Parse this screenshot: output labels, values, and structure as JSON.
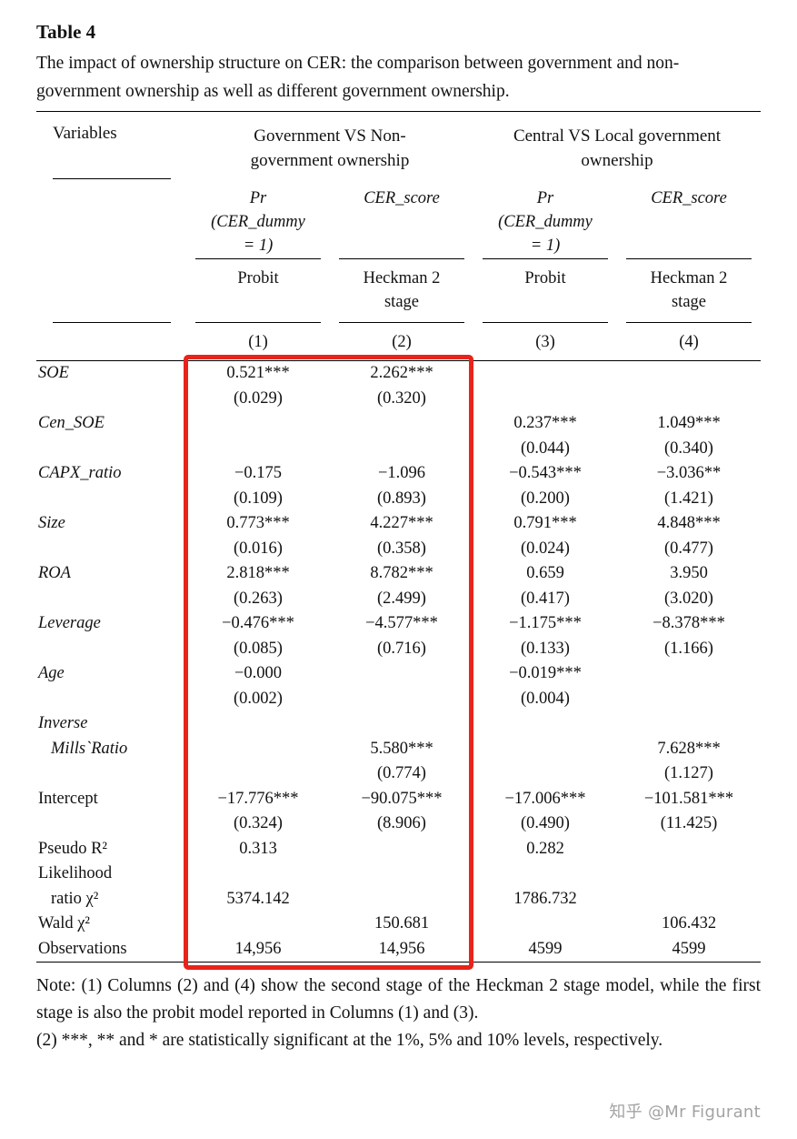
{
  "title": "Table 4",
  "caption": "The impact of ownership structure on CER: the comparison between government and non-government ownership as well as different government ownership.",
  "table": {
    "header": {
      "variables": "Variables",
      "groups": [
        {
          "lines": [
            "Government VS Non-",
            "government ownership"
          ]
        },
        {
          "lines": [
            "Central VS Local government",
            "ownership"
          ]
        }
      ],
      "dep_vars": [
        {
          "lines": [
            "Pr",
            "(CER_dummy",
            "= 1)"
          ]
        },
        {
          "lines": [
            "CER_score",
            "",
            ""
          ]
        },
        {
          "lines": [
            "Pr",
            "(CER_dummy",
            "= 1)"
          ]
        },
        {
          "lines": [
            "CER_score",
            "",
            ""
          ]
        }
      ],
      "methods": [
        {
          "lines": [
            "Probit",
            ""
          ]
        },
        {
          "lines": [
            "Heckman 2",
            "stage"
          ]
        },
        {
          "lines": [
            "Probit",
            ""
          ]
        },
        {
          "lines": [
            "Heckman 2",
            "stage"
          ]
        }
      ],
      "col_numbers": [
        "(1)",
        "(2)",
        "(3)",
        "(4)"
      ]
    },
    "body_lines": [
      {
        "label": "SOE",
        "italic": true,
        "cells": [
          "0.521***",
          "2.262***",
          "",
          ""
        ]
      },
      {
        "label": "",
        "cells": [
          "(0.029)",
          "(0.320)",
          "",
          ""
        ]
      },
      {
        "label": "Cen_SOE",
        "italic": true,
        "cells": [
          "",
          "",
          "0.237***",
          "1.049***"
        ]
      },
      {
        "label": "",
        "cells": [
          "",
          "",
          "(0.044)",
          "(0.340)"
        ]
      },
      {
        "label": "CAPX_ratio",
        "italic": true,
        "cells": [
          "−0.175",
          "−1.096",
          "−0.543***",
          "−3.036**"
        ]
      },
      {
        "label": "",
        "cells": [
          "(0.109)",
          "(0.893)",
          "(0.200)",
          "(1.421)"
        ]
      },
      {
        "label": "Size",
        "italic": true,
        "cells": [
          "0.773***",
          "4.227***",
          "0.791***",
          "4.848***"
        ]
      },
      {
        "label": "",
        "cells": [
          "(0.016)",
          "(0.358)",
          "(0.024)",
          "(0.477)"
        ]
      },
      {
        "label": "ROA",
        "italic": true,
        "cells": [
          "2.818***",
          "8.782***",
          "0.659",
          "3.950"
        ]
      },
      {
        "label": "",
        "cells": [
          "(0.263)",
          "(2.499)",
          "(0.417)",
          "(3.020)"
        ]
      },
      {
        "label": "Leverage",
        "italic": true,
        "cells": [
          "−0.476***",
          "−4.577***",
          "−1.175***",
          "−8.378***"
        ]
      },
      {
        "label": "",
        "cells": [
          "(0.085)",
          "(0.716)",
          "(0.133)",
          "(1.166)"
        ]
      },
      {
        "label": "Age",
        "italic": true,
        "cells": [
          "−0.000",
          "",
          "−0.019***",
          ""
        ]
      },
      {
        "label": "",
        "cells": [
          "(0.002)",
          "",
          "(0.004)",
          ""
        ]
      },
      {
        "label": "Inverse",
        "italic": true,
        "cells": [
          "",
          "",
          "",
          ""
        ]
      },
      {
        "label": "Mills`Ratio",
        "italic": true,
        "indent": true,
        "cells": [
          "",
          "5.580***",
          "",
          "7.628***"
        ]
      },
      {
        "label": "",
        "cells": [
          "",
          "(0.774)",
          "",
          "(1.127)"
        ]
      },
      {
        "label": "Intercept",
        "cells": [
          "−17.776***",
          "−90.075***",
          "−17.006***",
          "−101.581***"
        ]
      },
      {
        "label": "",
        "cells": [
          "(0.324)",
          "(8.906)",
          "(0.490)",
          "(11.425)"
        ]
      },
      {
        "label": "Pseudo R²",
        "cells": [
          "0.313",
          "",
          "0.282",
          ""
        ]
      },
      {
        "label": "Likelihood",
        "cells": [
          "",
          "",
          "",
          ""
        ]
      },
      {
        "label": "ratio χ²",
        "indent": true,
        "cells": [
          "5374.142",
          "",
          "1786.732",
          ""
        ]
      },
      {
        "label": "Wald χ²",
        "cells": [
          "",
          "150.681",
          "",
          "106.432"
        ]
      },
      {
        "label": "Observations",
        "cells": [
          "14,956",
          "14,956",
          "4599",
          "4599"
        ]
      }
    ]
  },
  "notes": [
    "Note: (1) Columns (2) and (4) show the second stage of the Heckman 2 stage model, while the first stage is also the probit model reported in Columns (1) and (3).",
    "(2) ***, ** and * are statistically significant at the 1%, 5% and 10% levels, respectively."
  ],
  "highlight_color": "#e8231a",
  "watermark": "知乎 @Mr Figurant"
}
